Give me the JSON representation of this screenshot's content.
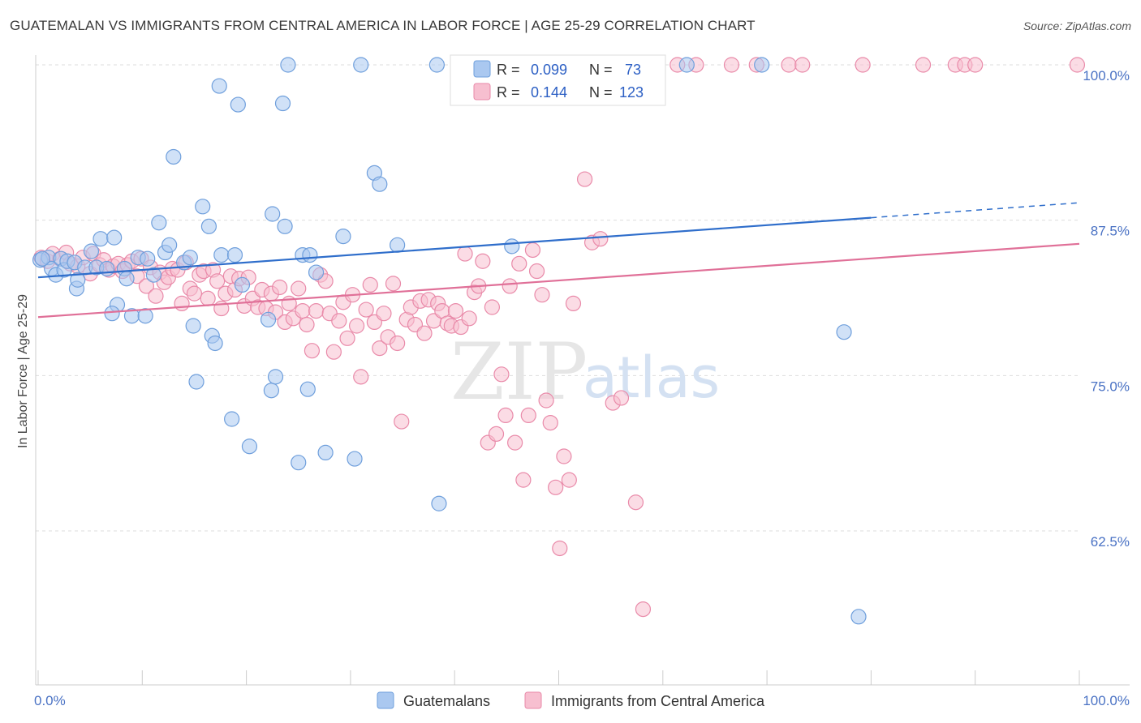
{
  "header": {
    "title": "GUATEMALAN VS IMMIGRANTS FROM CENTRAL AMERICA IN LABOR FORCE | AGE 25-29 CORRELATION CHART",
    "source": "Source: ZipAtlas.com"
  },
  "watermark": {
    "zip": "ZIP",
    "atlas": "atlas"
  },
  "colors": {
    "blue_fill": "#aac8f0",
    "blue_stroke": "#6f9fdc",
    "blue_line": "#2f6ecb",
    "pink_fill": "#f7bfd0",
    "pink_stroke": "#e98aa9",
    "pink_line": "#e07098",
    "tick_text": "#4a72c4",
    "grid": "#dddddd"
  },
  "legend": {
    "rows": [
      {
        "r_label": "R =",
        "r_value": "0.099",
        "n_label": "N =",
        "n_value": "73"
      },
      {
        "r_label": "R =",
        "r_value": "0.144",
        "n_label": "N =",
        "n_value": "123"
      }
    ]
  },
  "chart_data": {
    "type": "scatter",
    "title": "GUATEMALAN VS IMMIGRANTS FROM CENTRAL AMERICA IN LABOR FORCE | AGE 25-29 CORRELATION CHART",
    "xlabel": "",
    "ylabel": "In Labor Force | Age 25-29",
    "xlim": [
      0,
      100
    ],
    "ylim": [
      50,
      100.5
    ],
    "x_tick_labels": [
      {
        "value": 0,
        "label": "0.0%"
      },
      {
        "value": 100,
        "label": "100.0%"
      }
    ],
    "y_ticks": [
      {
        "value": 62.5,
        "label": "62.5%"
      },
      {
        "value": 75.0,
        "label": "75.0%"
      },
      {
        "value": 87.5,
        "label": "87.5%"
      },
      {
        "value": 100.0,
        "label": "100.0%"
      }
    ],
    "grid": "horizontal-dashed",
    "legend_position": "top-center",
    "series": [
      {
        "name": "Guatemalans",
        "color": "#aac8f0",
        "trend": {
          "x": [
            0,
            80
          ],
          "y": [
            82.9,
            87.7
          ],
          "dashed_to": [
            100,
            88.9
          ]
        },
        "points": [
          [
            0.2,
            84.3
          ],
          [
            1.0,
            84.5
          ],
          [
            1.3,
            83.6
          ],
          [
            1.7,
            83.1
          ],
          [
            2.2,
            84.4
          ],
          [
            2.5,
            83.5
          ],
          [
            2.8,
            84.2
          ],
          [
            3.5,
            84.1
          ],
          [
            3.7,
            82.0
          ],
          [
            3.8,
            82.7
          ],
          [
            4.5,
            83.7
          ],
          [
            5.1,
            85.0
          ],
          [
            5.6,
            83.7
          ],
          [
            6.0,
            86.0
          ],
          [
            6.6,
            83.6
          ],
          [
            7.3,
            86.1
          ],
          [
            7.6,
            80.7
          ],
          [
            8.3,
            83.6
          ],
          [
            8.5,
            82.8
          ],
          [
            7.1,
            80.0
          ],
          [
            9.0,
            79.8
          ],
          [
            9.6,
            84.5
          ],
          [
            10.3,
            79.8
          ],
          [
            10.5,
            84.4
          ],
          [
            11.1,
            83.1
          ],
          [
            11.6,
            87.3
          ],
          [
            12.2,
            84.9
          ],
          [
            12.6,
            85.5
          ],
          [
            13.0,
            92.6
          ],
          [
            14.0,
            84.1
          ],
          [
            14.6,
            84.5
          ],
          [
            14.9,
            79.0
          ],
          [
            15.2,
            74.5
          ],
          [
            15.8,
            88.6
          ],
          [
            16.4,
            87.0
          ],
          [
            16.7,
            78.2
          ],
          [
            17.0,
            77.6
          ],
          [
            17.4,
            98.3
          ],
          [
            17.6,
            84.7
          ],
          [
            18.6,
            71.5
          ],
          [
            18.9,
            84.7
          ],
          [
            19.2,
            96.8
          ],
          [
            19.6,
            82.3
          ],
          [
            20.3,
            69.3
          ],
          [
            22.1,
            79.5
          ],
          [
            22.4,
            73.8
          ],
          [
            22.5,
            88.0
          ],
          [
            22.8,
            74.9
          ],
          [
            23.5,
            96.9
          ],
          [
            23.7,
            87.0
          ],
          [
            24.0,
            100.0
          ],
          [
            25.0,
            68.0
          ],
          [
            25.4,
            84.7
          ],
          [
            25.9,
            73.9
          ],
          [
            26.1,
            84.7
          ],
          [
            26.7,
            83.3
          ],
          [
            27.6,
            68.8
          ],
          [
            29.3,
            86.2
          ],
          [
            30.4,
            68.3
          ],
          [
            31.0,
            100.0
          ],
          [
            32.3,
            91.3
          ],
          [
            32.8,
            90.4
          ],
          [
            34.5,
            85.5
          ],
          [
            38.3,
            100.0
          ],
          [
            38.5,
            64.7
          ],
          [
            45.5,
            85.4
          ],
          [
            56.7,
            100.0
          ],
          [
            58.0,
            100.0
          ],
          [
            62.3,
            100.0
          ],
          [
            69.5,
            100.0
          ],
          [
            77.4,
            78.5
          ],
          [
            78.8,
            55.6
          ],
          [
            0.4,
            84.4
          ]
        ]
      },
      {
        "name": "Immigrants from Central America",
        "color": "#f7bfd0",
        "trend": {
          "x": [
            0,
            100
          ],
          "y": [
            79.7,
            85.6
          ]
        },
        "points": [
          [
            0.3,
            84.5
          ],
          [
            0.9,
            84.2
          ],
          [
            1.4,
            84.8
          ],
          [
            2.1,
            84.4
          ],
          [
            2.7,
            84.9
          ],
          [
            3.1,
            84.0
          ],
          [
            3.8,
            83.8
          ],
          [
            4.3,
            84.5
          ],
          [
            5.0,
            83.2
          ],
          [
            5.3,
            84.8
          ],
          [
            5.9,
            83.9
          ],
          [
            6.3,
            84.3
          ],
          [
            6.8,
            83.5
          ],
          [
            7.2,
            83.8
          ],
          [
            7.7,
            84.0
          ],
          [
            8.1,
            83.4
          ],
          [
            8.6,
            83.9
          ],
          [
            9.0,
            84.2
          ],
          [
            9.5,
            83.0
          ],
          [
            9.9,
            84.4
          ],
          [
            10.4,
            82.2
          ],
          [
            10.8,
            83.7
          ],
          [
            11.3,
            81.4
          ],
          [
            11.7,
            83.3
          ],
          [
            12.1,
            82.5
          ],
          [
            12.5,
            82.9
          ],
          [
            12.9,
            83.6
          ],
          [
            13.4,
            83.5
          ],
          [
            13.8,
            80.8
          ],
          [
            14.2,
            84.1
          ],
          [
            14.6,
            82.0
          ],
          [
            15.0,
            81.6
          ],
          [
            15.5,
            83.1
          ],
          [
            15.9,
            83.4
          ],
          [
            16.3,
            81.2
          ],
          [
            16.8,
            83.5
          ],
          [
            17.2,
            82.6
          ],
          [
            17.6,
            80.4
          ],
          [
            18.0,
            81.6
          ],
          [
            18.5,
            83.0
          ],
          [
            18.9,
            81.9
          ],
          [
            19.3,
            82.8
          ],
          [
            19.8,
            80.6
          ],
          [
            20.2,
            82.9
          ],
          [
            20.6,
            81.2
          ],
          [
            21.1,
            80.5
          ],
          [
            21.5,
            81.9
          ],
          [
            21.9,
            80.4
          ],
          [
            22.4,
            81.6
          ],
          [
            22.8,
            80.1
          ],
          [
            23.2,
            82.1
          ],
          [
            23.7,
            79.3
          ],
          [
            24.1,
            80.8
          ],
          [
            24.5,
            79.6
          ],
          [
            25.0,
            82.0
          ],
          [
            25.4,
            80.2
          ],
          [
            25.8,
            79.1
          ],
          [
            26.3,
            77.0
          ],
          [
            26.7,
            80.2
          ],
          [
            27.1,
            83.1
          ],
          [
            27.6,
            82.6
          ],
          [
            28.0,
            80.0
          ],
          [
            28.4,
            76.9
          ],
          [
            28.9,
            79.4
          ],
          [
            29.3,
            80.9
          ],
          [
            29.7,
            78.0
          ],
          [
            30.2,
            81.5
          ],
          [
            30.6,
            79.0
          ],
          [
            31.0,
            74.9
          ],
          [
            31.5,
            80.3
          ],
          [
            31.9,
            82.3
          ],
          [
            32.3,
            79.3
          ],
          [
            32.8,
            77.2
          ],
          [
            33.2,
            80.0
          ],
          [
            33.6,
            78.1
          ],
          [
            34.1,
            82.4
          ],
          [
            34.5,
            77.6
          ],
          [
            34.9,
            71.3
          ],
          [
            35.4,
            79.5
          ],
          [
            35.8,
            80.5
          ],
          [
            36.2,
            79.1
          ],
          [
            36.7,
            81.0
          ],
          [
            37.1,
            78.4
          ],
          [
            37.5,
            81.1
          ],
          [
            38.0,
            79.4
          ],
          [
            38.4,
            80.8
          ],
          [
            38.8,
            80.2
          ],
          [
            39.3,
            79.2
          ],
          [
            39.7,
            79.0
          ],
          [
            40.1,
            80.2
          ],
          [
            40.6,
            78.9
          ],
          [
            41.0,
            84.8
          ],
          [
            41.4,
            79.6
          ],
          [
            41.9,
            81.7
          ],
          [
            42.3,
            82.2
          ],
          [
            42.7,
            84.2
          ],
          [
            43.2,
            69.6
          ],
          [
            43.6,
            80.5
          ],
          [
            44.0,
            70.3
          ],
          [
            44.5,
            75.1
          ],
          [
            44.9,
            71.8
          ],
          [
            45.3,
            82.2
          ],
          [
            45.8,
            69.6
          ],
          [
            46.2,
            84.0
          ],
          [
            46.6,
            66.6
          ],
          [
            47.1,
            71.8
          ],
          [
            47.5,
            85.1
          ],
          [
            47.9,
            83.4
          ],
          [
            48.4,
            81.5
          ],
          [
            48.8,
            73.0
          ],
          [
            49.2,
            71.2
          ],
          [
            49.7,
            66.0
          ],
          [
            50.1,
            61.1
          ],
          [
            50.5,
            68.5
          ],
          [
            51.0,
            66.6
          ],
          [
            51.4,
            80.8
          ],
          [
            52.5,
            90.8
          ],
          [
            53.2,
            85.7
          ],
          [
            54.0,
            86.0
          ],
          [
            55.2,
            72.8
          ],
          [
            56.0,
            73.2
          ],
          [
            57.4,
            64.8
          ],
          [
            58.1,
            56.2
          ]
        ]
      }
    ],
    "top_row_pink_at_100": [
      59.0,
      61.4,
      63.2,
      66.6,
      69.0,
      72.1,
      73.4,
      79.2,
      85.0,
      88.1,
      89.0,
      90.0,
      99.8
    ]
  },
  "bottom_legend": {
    "items": [
      {
        "label": "Guatemalans"
      },
      {
        "label": "Immigrants from Central America"
      }
    ]
  }
}
